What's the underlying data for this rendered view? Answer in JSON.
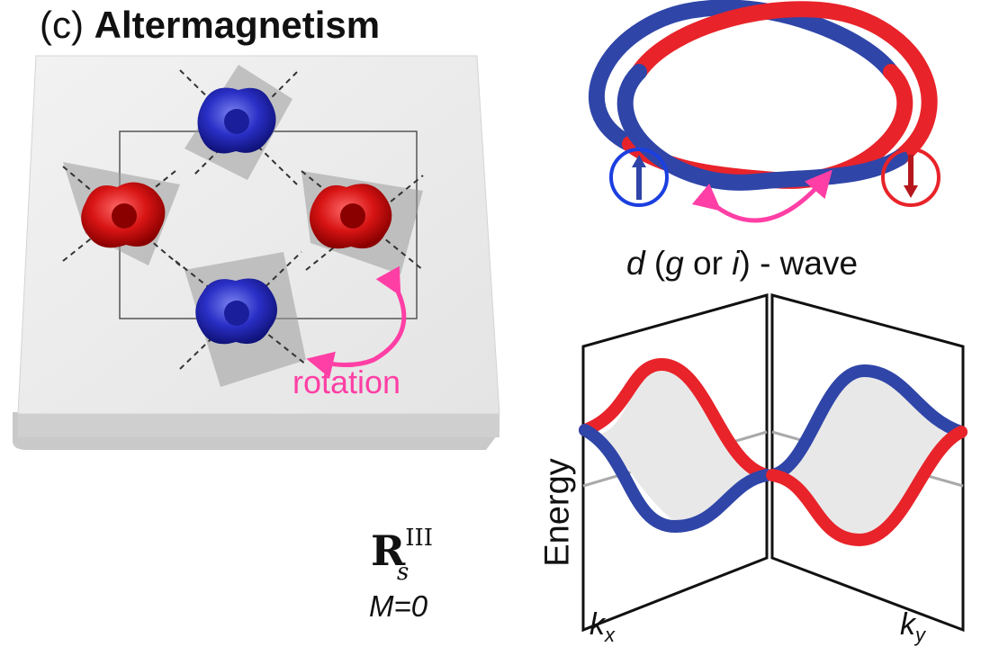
{
  "panel": {
    "tag": "(c)",
    "title": "Altermagnetism"
  },
  "lattice": {
    "rotation_label": "rotation"
  },
  "wave": {
    "prefix": "d",
    "open": " (",
    "g": "g",
    "or": " or ",
    "i": "i",
    "close": ") - wave"
  },
  "symbol": {
    "main": "R",
    "superscript": "III",
    "subscript": "s"
  },
  "magnetization": "M=0",
  "bands": {
    "ylabel": "Energy",
    "k1": "k",
    "k1_sub": "x",
    "k2": "k",
    "k2_sub": "y"
  },
  "colors": {
    "spin_up": "#2f45a8",
    "spin_down": "#e8232a",
    "arrow": "#ff3fa5"
  }
}
